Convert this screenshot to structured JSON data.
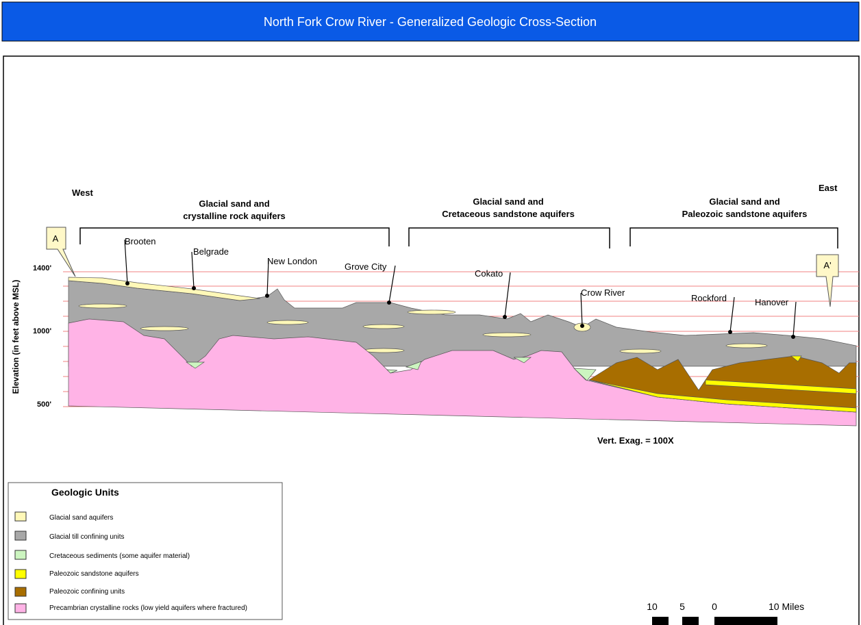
{
  "header": {
    "title": "North Fork Crow River - Generalized Geologic Cross-Section"
  },
  "section": {
    "west": "West",
    "east": "East",
    "groups": [
      [
        "Glacial sand and",
        "crystalline rock aquifers"
      ],
      [
        "Glacial sand and",
        "Cretaceous sandstone aquifers"
      ],
      [
        "Glacial sand and",
        "Paleozoic sandstone aquifers"
      ]
    ],
    "endpoints": [
      "A",
      "A'"
    ],
    "places": [
      "Brooten",
      "Belgrade",
      "New London",
      "Grove City",
      "Cokato",
      "Crow River",
      "Rockford",
      "Hanover"
    ],
    "elevations": [
      "1400'",
      "1000'",
      "500'"
    ],
    "axis_label": "Elevation (in feet above MSL)",
    "exaggeration": "Vert. Exag. = 100X"
  },
  "legend": {
    "title": "Geologic Units",
    "items": [
      "Glacial sand aquifers",
      "Glacial till confining units",
      "Cretaceous sediments (some aquifer material)",
      "Paleozoic sandstone aquifers",
      "Paleozoic confining units",
      "Precambrian crystalline rocks (low yield aquifers where fractured)"
    ]
  },
  "scale": {
    "labels": [
      "10",
      "5",
      "0",
      "10 Miles"
    ]
  }
}
